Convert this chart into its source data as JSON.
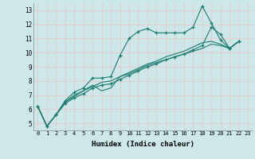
{
  "xlabel": "Humidex (Indice chaleur)",
  "ylabel": "",
  "bg_color": "#cce8ea",
  "grid_color": "#e8c8c8",
  "line_color": "#1a7a6e",
  "xlim": [
    -0.5,
    23.5
  ],
  "ylim": [
    4.5,
    13.5
  ],
  "yticks": [
    5,
    6,
    7,
    8,
    9,
    10,
    11,
    12,
    13
  ],
  "xticks": [
    0,
    1,
    2,
    3,
    4,
    5,
    6,
    7,
    8,
    9,
    10,
    11,
    12,
    13,
    14,
    15,
    16,
    17,
    18,
    19,
    20,
    21,
    22,
    23
  ],
  "series": [
    [
      6.2,
      4.8,
      5.6,
      6.6,
      7.2,
      7.5,
      8.2,
      8.2,
      8.3,
      9.8,
      11.0,
      11.5,
      11.7,
      11.4,
      11.4,
      11.4,
      11.4,
      11.8,
      13.3,
      12.1,
      10.9,
      10.3,
      10.8,
      null
    ],
    [
      6.2,
      4.8,
      5.6,
      6.5,
      7.0,
      7.3,
      7.7,
      7.3,
      7.5,
      8.3,
      8.5,
      8.8,
      9.1,
      9.3,
      9.5,
      9.7,
      9.9,
      10.1,
      10.3,
      10.6,
      10.5,
      10.3,
      10.8,
      null
    ],
    [
      6.2,
      4.8,
      5.6,
      6.5,
      6.9,
      7.3,
      7.6,
      7.9,
      8.0,
      8.3,
      8.6,
      8.9,
      9.2,
      9.4,
      9.7,
      9.9,
      10.1,
      10.4,
      10.7,
      10.8,
      10.6,
      10.3,
      10.8,
      null
    ],
    [
      6.2,
      4.8,
      5.6,
      6.4,
      6.8,
      7.1,
      7.5,
      7.7,
      7.8,
      8.1,
      8.4,
      8.7,
      9.0,
      9.2,
      9.5,
      9.7,
      9.9,
      10.2,
      10.5,
      11.8,
      11.3,
      10.3,
      10.8,
      null
    ]
  ],
  "marker_series": [
    0,
    3
  ],
  "no_marker_series": [
    1,
    2
  ]
}
